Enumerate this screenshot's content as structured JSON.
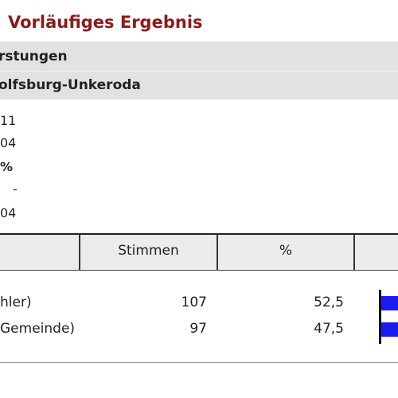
{
  "header": {
    "title": "Vorläufiges Ergebnis",
    "lines": [
      "rstungen",
      "olfsburg-Unkeroda"
    ]
  },
  "info": [
    "11",
    "04",
    "%",
    "-",
    "04"
  ],
  "table": {
    "columns": [
      "Stimmen",
      "%"
    ],
    "rows": [
      [
        "hler)",
        "107",
        "52,5"
      ],
      [
        "Gemeinde)",
        "97",
        "47,5"
      ]
    ]
  }
}
